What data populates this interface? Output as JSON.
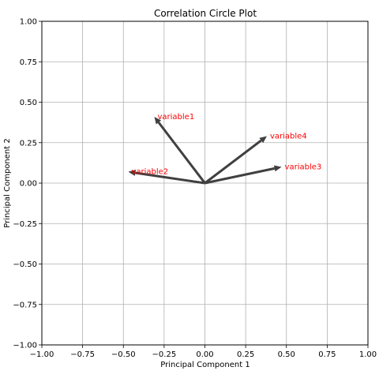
{
  "chart_data": {
    "type": "scatter",
    "title": "Correlation Circle Plot",
    "xlabel": "Principal Component 1",
    "ylabel": "Principal Component 2",
    "xlim": [
      -1.0,
      1.0
    ],
    "ylim": [
      -1.0,
      1.0
    ],
    "grid": true,
    "x_ticks": [
      "−1.00",
      "−0.75",
      "−0.50",
      "−0.25",
      "0.00",
      "0.25",
      "0.50",
      "0.75",
      "1.00"
    ],
    "y_ticks": [
      "1.00",
      "0.75",
      "0.50",
      "0.25",
      "0.00",
      "−0.25",
      "−0.50",
      "−0.75",
      "−1.00"
    ],
    "vectors": [
      {
        "name": "variable1",
        "x": -0.31,
        "y": 0.41
      },
      {
        "name": "variable2",
        "x": -0.47,
        "y": 0.07
      },
      {
        "name": "variable3",
        "x": 0.47,
        "y": 0.1
      },
      {
        "name": "variable4",
        "x": 0.38,
        "y": 0.29
      }
    ],
    "arrow_color": "#404040",
    "label_color": "#ff0000",
    "grid_color": "#b0b0b0"
  }
}
